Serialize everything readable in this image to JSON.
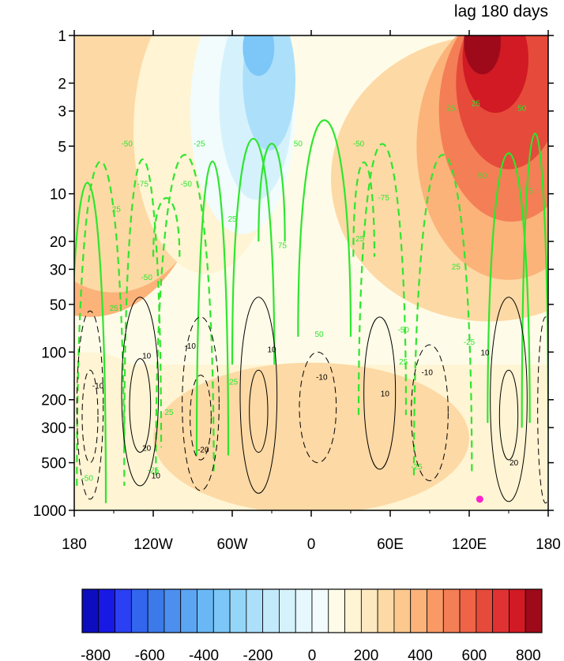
{
  "chart_data": {
    "type": "heatmap",
    "title": "lag 180 days",
    "x_ticks": [
      "180",
      "120W",
      "60W",
      "0",
      "60E",
      "120E",
      "180"
    ],
    "x_tick_values": [
      -180,
      -120,
      -60,
      0,
      60,
      120,
      180
    ],
    "xlim": [
      -180,
      180
    ],
    "y_ticks": [
      "1",
      "2",
      "3",
      "5",
      "10",
      "20",
      "30",
      "50",
      "100",
      "200",
      "300",
      "500",
      "1000"
    ],
    "y_tick_values": [
      1,
      2,
      3,
      5,
      10,
      20,
      30,
      50,
      100,
      200,
      300,
      500,
      1000
    ],
    "ylim": [
      1,
      1000
    ],
    "y_scale": "log",
    "y_direction": "inverted",
    "colorbar": {
      "labels": [
        "-800",
        "-600",
        "-400",
        "-200",
        "0",
        "200",
        "400",
        "600",
        "800"
      ],
      "min": -850,
      "max": 850,
      "step": 50,
      "colors": [
        "#0d0dbf",
        "#1919e6",
        "#2b40f2",
        "#3366ee",
        "#3b7ae8",
        "#4d8fef",
        "#5ca5f3",
        "#6ab7f5",
        "#7cc7f7",
        "#94d6f8",
        "#acdffa",
        "#c3eafb",
        "#d5f2fc",
        "#e6f8fd",
        "#f2fcfd",
        "#fefce8",
        "#fff4d3",
        "#fde9bf",
        "#fdd9a5",
        "#fcc88e",
        "#fbb37a",
        "#f99a66",
        "#f47e56",
        "#ef6346",
        "#e64a3a",
        "#e03233",
        "#d11a24",
        "#9e0a1a"
      ]
    },
    "marker": {
      "x": 128,
      "y": 850,
      "color": "#ff22cc"
    },
    "shading": [
      {
        "value": 450,
        "x": -175,
        "y": 8,
        "w": 40,
        "h": 6
      },
      {
        "value": 250,
        "x": -172,
        "y": 6,
        "w": 65,
        "h": 8
      },
      {
        "value": 150,
        "x": -168,
        "y": 5,
        "w": 90,
        "h": 12
      },
      {
        "value": 50,
        "x": -150,
        "y": 6,
        "w": 75,
        "h": 7
      },
      {
        "value": -50,
        "x": -80,
        "y": 4,
        "w": 55,
        "h": 8
      },
      {
        "value": -150,
        "x": -52,
        "y": 3,
        "w": 40,
        "h": 6
      },
      {
        "value": -250,
        "x": -42,
        "y": 2.6,
        "w": 28,
        "h": 4.2
      },
      {
        "value": -350,
        "x": -32,
        "y": 1.9,
        "w": 20,
        "h": 2.8
      },
      {
        "value": -450,
        "x": -40,
        "y": 1.2,
        "w": 12,
        "h": 1.5
      },
      {
        "value": 50,
        "x": 135,
        "y": 8,
        "w": 120,
        "h": 8
      },
      {
        "value": 150,
        "x": 150,
        "y": 5,
        "w": 70,
        "h": 7
      },
      {
        "value": 250,
        "x": 152,
        "y": 3,
        "w": 55,
        "h": 5
      },
      {
        "value": 350,
        "x": 150,
        "y": 2,
        "w": 40,
        "h": 3.5
      },
      {
        "value": 450,
        "x": 140,
        "y": 1.4,
        "w": 25,
        "h": 2.2
      },
      {
        "value": 550,
        "x": 130,
        "y": 1.1,
        "w": 14,
        "h": 1.6
      },
      {
        "value": -50,
        "x": -170,
        "y": 300,
        "w": 60,
        "h": 3
      },
      {
        "value": -50,
        "x": 70,
        "y": 750,
        "w": 210,
        "h": 2.4
      },
      {
        "value": 50,
        "x": 0,
        "y": 350,
        "w": 120,
        "h": 3
      }
    ],
    "contour_label_values": [
      "-10",
      "10",
      "20",
      "25",
      "50",
      "75",
      "-25",
      "-50",
      "-75"
    ]
  }
}
